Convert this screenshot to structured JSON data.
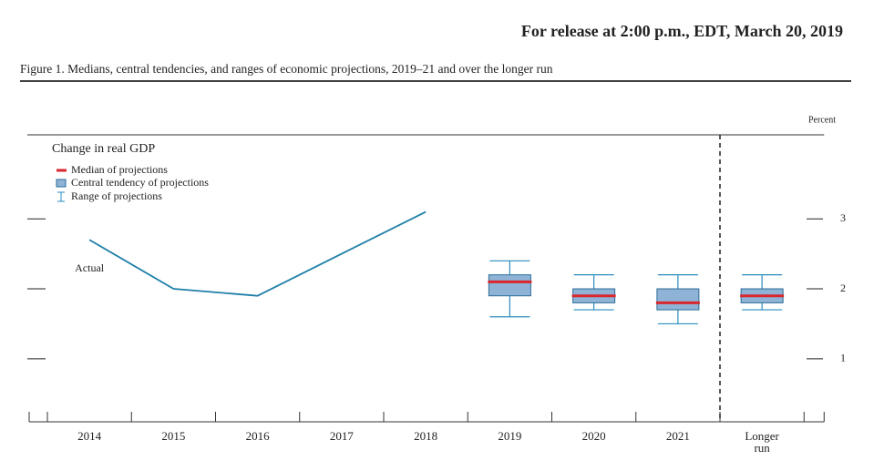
{
  "header": {
    "release": "For release at 2:00 p.m., EDT, March 20, 2019",
    "caption": "Figure 1. Medians, central tendencies, and ranges of economic projections, 2019–21 and over the longer run"
  },
  "chart_data": {
    "type": "projection",
    "subtitle": "Change in real GDP",
    "y_label": "Percent",
    "categories": [
      "2014",
      "2015",
      "2016",
      "2017",
      "2018",
      "2019",
      "2020",
      "2021",
      "Longer run"
    ],
    "actual": {
      "label": "Actual",
      "color": "#1f7fa8",
      "values": [
        2.7,
        2.0,
        1.9,
        2.5,
        3.1,
        null,
        null,
        null,
        null
      ]
    },
    "legend": {
      "median": "Median of projections",
      "central": "Central tendency of projections",
      "range": "Range of projections"
    },
    "median": [
      null,
      null,
      null,
      null,
      null,
      2.1,
      1.9,
      1.8,
      1.9
    ],
    "central_low": [
      null,
      null,
      null,
      null,
      null,
      1.9,
      1.8,
      1.7,
      1.8
    ],
    "central_high": [
      null,
      null,
      null,
      null,
      null,
      2.2,
      2.0,
      2.0,
      2.0
    ],
    "range_low": [
      null,
      null,
      null,
      null,
      null,
      1.6,
      1.7,
      1.5,
      1.7
    ],
    "range_high": [
      null,
      null,
      null,
      null,
      null,
      2.4,
      2.2,
      2.2,
      2.2
    ],
    "colors": {
      "median": "#d9262e",
      "central": "#8fb3d6",
      "central_edge": "#2a6d97",
      "range": "#2b8dbf"
    },
    "ylim": [
      0.1,
      4.2
    ],
    "yticks": [
      1,
      2,
      3
    ]
  }
}
